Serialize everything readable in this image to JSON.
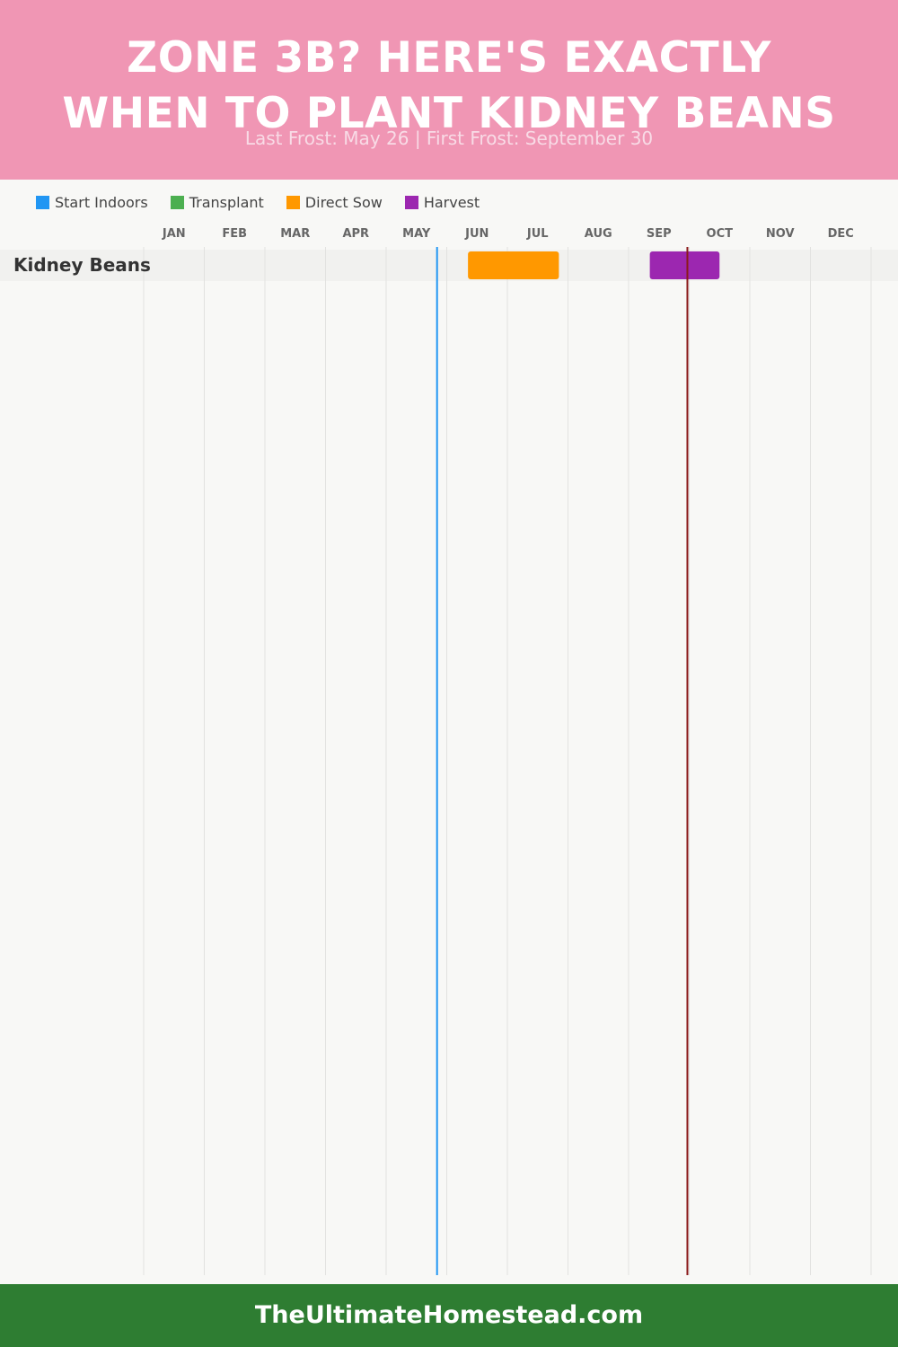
{
  "header": {
    "title_line1": "ZONE 3B? HERE'S EXACTLY",
    "title_line2": "WHEN TO PLANT KIDNEY BEANS",
    "subtitle": "Last Frost: May 26 | First Frost: September 30",
    "background": "#f096b4"
  },
  "legend": [
    {
      "label": "Start Indoors",
      "color": "#2196f3"
    },
    {
      "label": "Transplant",
      "color": "#4caf50"
    },
    {
      "label": "Direct Sow",
      "color": "#ff9800"
    },
    {
      "label": "Harvest",
      "color": "#9c27b0"
    }
  ],
  "chart_data": {
    "type": "gantt",
    "months": [
      "JAN",
      "FEB",
      "MAR",
      "APR",
      "MAY",
      "JUN",
      "JUL",
      "AUG",
      "SEP",
      "OCT",
      "NOV",
      "DEC"
    ],
    "rows": [
      {
        "crop": "Kidney Beans",
        "bars": [
          {
            "phase": "Direct Sow",
            "start_month": 6.35,
            "end_month": 7.85,
            "color": "#ff9800"
          },
          {
            "phase": "Harvest",
            "start_month": 9.35,
            "end_month": 10.5,
            "color": "#9c27b0"
          }
        ]
      }
    ],
    "markers": [
      {
        "name": "Last Frost",
        "month": 5.84,
        "color": "#2196f3"
      },
      {
        "name": "First Frost",
        "month": 9.97,
        "color": "#8b1a1a"
      }
    ]
  },
  "footer": {
    "text": "TheUltimateHomestead.com",
    "background": "#2e7d32"
  }
}
